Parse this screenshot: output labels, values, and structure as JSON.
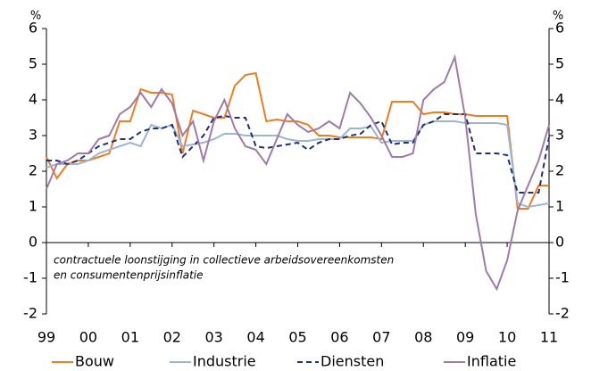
{
  "chart_data": {
    "type": "line",
    "y_unit": "%",
    "annotation": [
      "contractuele loonstijging in collectieve arbeidsovereenkomsten",
      "en consumentenprijsinflatie"
    ],
    "x": [
      1999,
      1999.25,
      1999.5,
      1999.75,
      2000,
      2000.25,
      2000.5,
      2000.75,
      2001,
      2001.25,
      2001.5,
      2001.75,
      2002,
      2002.25,
      2002.5,
      2002.75,
      2003,
      2003.25,
      2003.5,
      2003.75,
      2004,
      2004.25,
      2004.5,
      2004.75,
      2005,
      2005.25,
      2005.5,
      2005.75,
      2006,
      2006.25,
      2006.5,
      2006.75,
      2007,
      2007.25,
      2007.5,
      2007.75,
      2008,
      2008.25,
      2008.5,
      2008.75,
      2009,
      2009.25,
      2009.5,
      2009.75,
      2010,
      2010.25,
      2010.5,
      2010.75,
      2011
    ],
    "xlim": [
      1999,
      2011
    ],
    "xticks": [
      {
        "value": 1999,
        "label": "99"
      },
      {
        "value": 2000,
        "label": "00"
      },
      {
        "value": 2001,
        "label": "01"
      },
      {
        "value": 2002,
        "label": "02"
      },
      {
        "value": 2003,
        "label": "03"
      },
      {
        "value": 2004,
        "label": "04"
      },
      {
        "value": 2005,
        "label": "05"
      },
      {
        "value": 2006,
        "label": "06"
      },
      {
        "value": 2007,
        "label": "07"
      },
      {
        "value": 2008,
        "label": "08"
      },
      {
        "value": 2009,
        "label": "09"
      },
      {
        "value": 2010,
        "label": "10"
      },
      {
        "value": 2011,
        "label": "11"
      }
    ],
    "ylim": [
      -2,
      6
    ],
    "yticks": [
      -2,
      -1,
      0,
      1,
      2,
      3,
      4,
      5,
      6
    ],
    "series": [
      {
        "name": "Bouw",
        "color": "#f07c1e",
        "dash": false,
        "values": [
          2.4,
          1.8,
          2.2,
          2.3,
          2.3,
          2.4,
          2.5,
          3.4,
          3.4,
          4.3,
          4.2,
          4.2,
          4.15,
          2.5,
          3.7,
          3.6,
          3.5,
          3.5,
          4.4,
          4.7,
          4.75,
          3.4,
          3.45,
          3.4,
          3.4,
          3.3,
          3.0,
          3.0,
          2.95,
          2.95,
          2.95,
          2.95,
          2.9,
          3.95,
          3.95,
          3.95,
          3.6,
          3.65,
          3.65,
          3.6,
          3.6,
          3.55,
          3.55,
          3.55,
          3.55,
          0.95,
          0.95,
          1.6,
          1.6
        ]
      },
      {
        "name": "Industrie",
        "color": "#9bb5d3",
        "dash": false,
        "values": [
          2.1,
          2.2,
          2.2,
          2.2,
          2.3,
          2.5,
          2.6,
          2.7,
          2.8,
          2.7,
          3.3,
          3.2,
          3.3,
          2.7,
          2.75,
          2.8,
          2.9,
          3.05,
          3.05,
          3.0,
          3.0,
          3.0,
          3.0,
          2.9,
          2.85,
          2.85,
          2.9,
          2.9,
          2.9,
          3.2,
          3.2,
          3.25,
          2.8,
          2.85,
          2.85,
          2.85,
          3.3,
          3.4,
          3.4,
          3.4,
          3.35,
          3.35,
          3.35,
          3.35,
          3.3,
          1.1,
          1.0,
          1.05,
          1.1
        ]
      },
      {
        "name": "Diensten",
        "color": "#1f2f7a",
        "dash": true,
        "values": [
          2.3,
          2.3,
          2.2,
          2.3,
          2.5,
          2.7,
          2.8,
          2.9,
          2.9,
          3.1,
          3.2,
          3.2,
          3.3,
          2.4,
          2.7,
          3.0,
          3.5,
          3.55,
          3.5,
          3.5,
          2.7,
          2.65,
          2.7,
          2.75,
          2.8,
          2.6,
          2.8,
          2.9,
          2.9,
          3.0,
          3.05,
          3.3,
          3.4,
          2.75,
          2.8,
          2.8,
          3.3,
          3.4,
          3.6,
          3.6,
          3.6,
          2.5,
          2.5,
          2.5,
          2.45,
          1.4,
          1.4,
          1.4,
          2.95
        ]
      },
      {
        "name": "Inflatie",
        "color": "#a07aa8",
        "dash": false,
        "values": [
          1.5,
          2.2,
          2.3,
          2.5,
          2.5,
          2.9,
          3.0,
          3.6,
          3.8,
          4.2,
          3.8,
          4.3,
          3.9,
          3.0,
          3.4,
          2.3,
          3.4,
          4.0,
          3.2,
          2.7,
          2.6,
          2.2,
          2.9,
          3.6,
          3.3,
          3.1,
          3.2,
          3.4,
          3.2,
          4.2,
          3.9,
          3.5,
          3.0,
          2.4,
          2.4,
          2.5,
          4.0,
          4.3,
          4.5,
          5.2,
          3.5,
          0.8,
          -0.8,
          -1.3,
          -0.5,
          0.9,
          1.6,
          2.3,
          3.3
        ]
      }
    ]
  }
}
